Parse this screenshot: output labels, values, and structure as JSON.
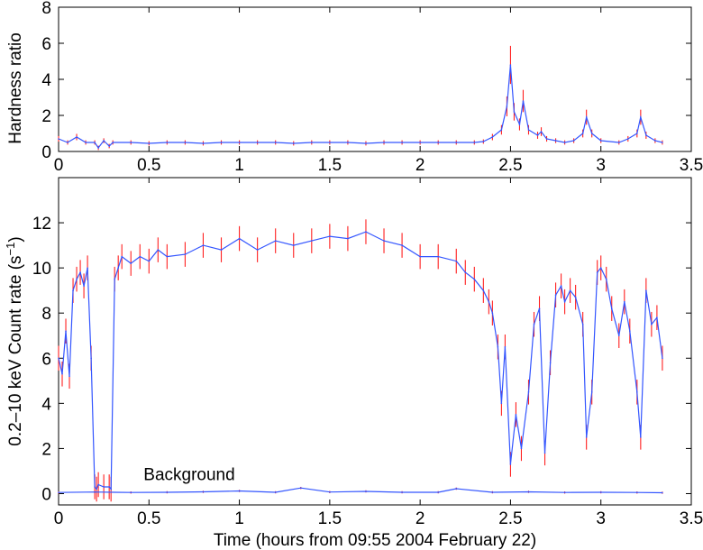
{
  "chart_data": [
    {
      "type": "line",
      "xlabel": "",
      "ylabel": "Hardness ratio",
      "xlim": [
        0,
        3.5
      ],
      "ylim": [
        0,
        8
      ],
      "xticks": [
        "0",
        "0.5",
        "1",
        "1.5",
        "2",
        "2.5",
        "3",
        "3.5"
      ],
      "yticks": [
        "0",
        "2",
        "4",
        "6",
        "8"
      ],
      "grid": false,
      "series": [
        {
          "color": "#3355ff",
          "errorbar_color": "#ff2020",
          "x": [
            0,
            0.05,
            0.1,
            0.15,
            0.2,
            0.22,
            0.25,
            0.28,
            0.3,
            0.4,
            0.5,
            0.6,
            0.7,
            0.8,
            0.9,
            1.0,
            1.1,
            1.2,
            1.3,
            1.4,
            1.5,
            1.6,
            1.7,
            1.8,
            1.9,
            2.0,
            2.1,
            2.2,
            2.3,
            2.35,
            2.4,
            2.45,
            2.48,
            2.5,
            2.52,
            2.55,
            2.57,
            2.6,
            2.65,
            2.67,
            2.7,
            2.75,
            2.8,
            2.85,
            2.9,
            2.92,
            2.95,
            3.0,
            3.1,
            3.15,
            3.2,
            3.22,
            3.25,
            3.3,
            3.34
          ],
          "y": [
            0.7,
            0.5,
            0.8,
            0.5,
            0.5,
            0.2,
            0.6,
            0.3,
            0.5,
            0.5,
            0.45,
            0.5,
            0.5,
            0.45,
            0.5,
            0.5,
            0.5,
            0.5,
            0.45,
            0.5,
            0.5,
            0.5,
            0.45,
            0.5,
            0.5,
            0.5,
            0.5,
            0.5,
            0.5,
            0.55,
            0.8,
            1.2,
            2.5,
            4.8,
            2.2,
            1.5,
            2.8,
            1.2,
            0.9,
            1.1,
            0.7,
            0.6,
            0.5,
            0.6,
            1.0,
            1.9,
            1.0,
            0.6,
            0.5,
            0.7,
            1.0,
            1.9,
            0.9,
            0.6,
            0.5
          ]
        }
      ]
    },
    {
      "type": "line",
      "xlabel": "Time (hours from 09:55 2004 February 22)",
      "ylabel": "0.2–10 keV Count rate (s",
      "ylabel_sup": "−1",
      "ylabel_end": ")",
      "xlim": [
        0,
        3.5
      ],
      "ylim": [
        -0.5,
        14
      ],
      "xticks": [
        "0",
        "0.5",
        "1",
        "1.5",
        "2",
        "2.5",
        "3",
        "3.5"
      ],
      "yticks": [
        "0",
        "2",
        "4",
        "6",
        "8",
        "10",
        "12"
      ],
      "grid": false,
      "annotations": [
        {
          "text": "Background",
          "x": 0.47,
          "y": 0.6
        }
      ],
      "series": [
        {
          "color": "#3355ff",
          "errorbar_color": "#ff2020",
          "x": [
            0,
            0.02,
            0.04,
            0.06,
            0.08,
            0.1,
            0.12,
            0.14,
            0.16,
            0.18,
            0.2,
            0.21,
            0.22,
            0.25,
            0.28,
            0.29,
            0.31,
            0.33,
            0.35,
            0.4,
            0.45,
            0.5,
            0.55,
            0.6,
            0.7,
            0.8,
            0.9,
            1.0,
            1.1,
            1.2,
            1.3,
            1.4,
            1.5,
            1.6,
            1.7,
            1.8,
            1.9,
            2.0,
            2.1,
            2.2,
            2.25,
            2.3,
            2.35,
            2.38,
            2.4,
            2.43,
            2.45,
            2.47,
            2.5,
            2.53,
            2.56,
            2.6,
            2.63,
            2.66,
            2.69,
            2.72,
            2.75,
            2.78,
            2.8,
            2.83,
            2.86,
            2.9,
            2.92,
            2.95,
            2.98,
            3.0,
            3.03,
            3.06,
            3.1,
            3.13,
            3.16,
            3.2,
            3.22,
            3.25,
            3.28,
            3.31,
            3.34
          ],
          "y": [
            6.0,
            5.3,
            7.2,
            5.2,
            9.0,
            9.5,
            9.8,
            9.2,
            10.0,
            6.0,
            0.3,
            0.2,
            0.4,
            0.3,
            0.3,
            0.2,
            9.5,
            10.0,
            10.5,
            10.2,
            10.5,
            10.3,
            10.8,
            10.5,
            10.6,
            11.0,
            10.8,
            11.3,
            10.8,
            11.2,
            11.0,
            11.2,
            11.4,
            11.3,
            11.6,
            11.2,
            11.0,
            10.5,
            10.5,
            10.3,
            9.8,
            9.5,
            9.0,
            8.5,
            8.0,
            6.5,
            4.0,
            6.5,
            1.3,
            3.5,
            2.0,
            4.5,
            7.5,
            8.2,
            1.8,
            5.8,
            8.8,
            9.2,
            8.5,
            9.0,
            8.7,
            7.5,
            2.5,
            4.5,
            9.8,
            10.0,
            9.5,
            8.2,
            7.0,
            8.5,
            7.2,
            4.5,
            2.5,
            9.0,
            7.5,
            7.8,
            6.0
          ]
        },
        {
          "name": "Background",
          "color": "#3355ff",
          "errorbar_color": "#ff2020",
          "x": [
            0,
            0.2,
            0.4,
            0.6,
            0.8,
            1.0,
            1.2,
            1.34,
            1.5,
            1.7,
            1.9,
            2.1,
            2.2,
            2.4,
            2.6,
            2.8,
            3.0,
            3.2,
            3.34
          ],
          "y": [
            0.05,
            0.07,
            0.05,
            0.06,
            0.08,
            0.12,
            0.06,
            0.25,
            0.07,
            0.1,
            0.06,
            0.06,
            0.22,
            0.06,
            0.08,
            0.05,
            0.06,
            0.05,
            0.04
          ]
        }
      ]
    }
  ]
}
